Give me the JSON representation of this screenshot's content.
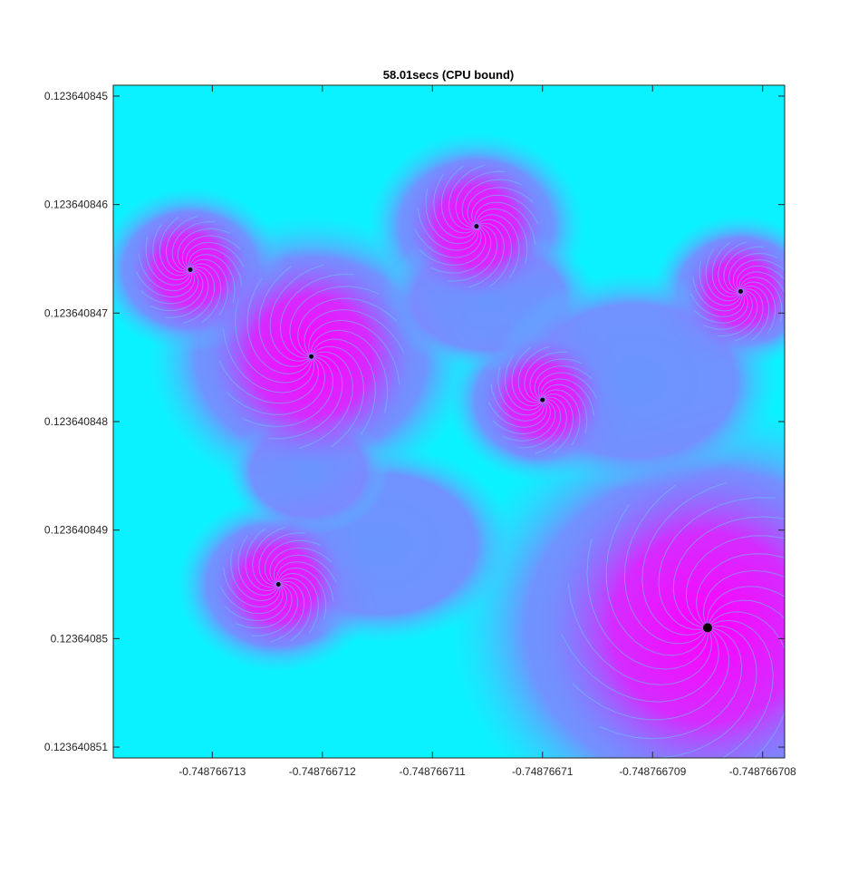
{
  "chart_data": {
    "type": "heatmap",
    "title": "58.01secs (CPU bound)",
    "xlabel": "",
    "ylabel": "",
    "x_ticks": [
      "-0.748766713",
      "-0.748766712",
      "-0.748766711",
      "-0.74876671",
      "-0.748766709",
      "-0.748766708"
    ],
    "y_ticks": [
      "0.123640845",
      "0.123640846",
      "0.123640847",
      "0.123640848",
      "0.123640849",
      "0.12364085",
      "0.123640851"
    ],
    "xlim": [
      -0.7487667139,
      -0.7487667078
    ],
    "ylim": [
      0.1236408449,
      0.1236408511
    ],
    "y_direction": "reverse",
    "grid": false,
    "colormap": "cool",
    "colormap_endpoints": [
      "#00ffff",
      "#ff00ff"
    ],
    "description_note": "Mandelbrot set zoom rendered with escape-iteration coloring",
    "spiral_centers": [
      {
        "x": -0.7487667121,
        "y": 0.1236408474
      },
      {
        "x": -0.7487667085,
        "y": 0.1236408499
      },
      {
        "x": -0.7487667106,
        "y": 0.1236408462
      },
      {
        "x": -0.7487667132,
        "y": 0.1236408466
      },
      {
        "x": -0.7487667124,
        "y": 0.1236408495
      },
      {
        "x": -0.74876671,
        "y": 0.1236408478
      },
      {
        "x": -0.7487667082,
        "y": 0.1236408468
      }
    ]
  }
}
